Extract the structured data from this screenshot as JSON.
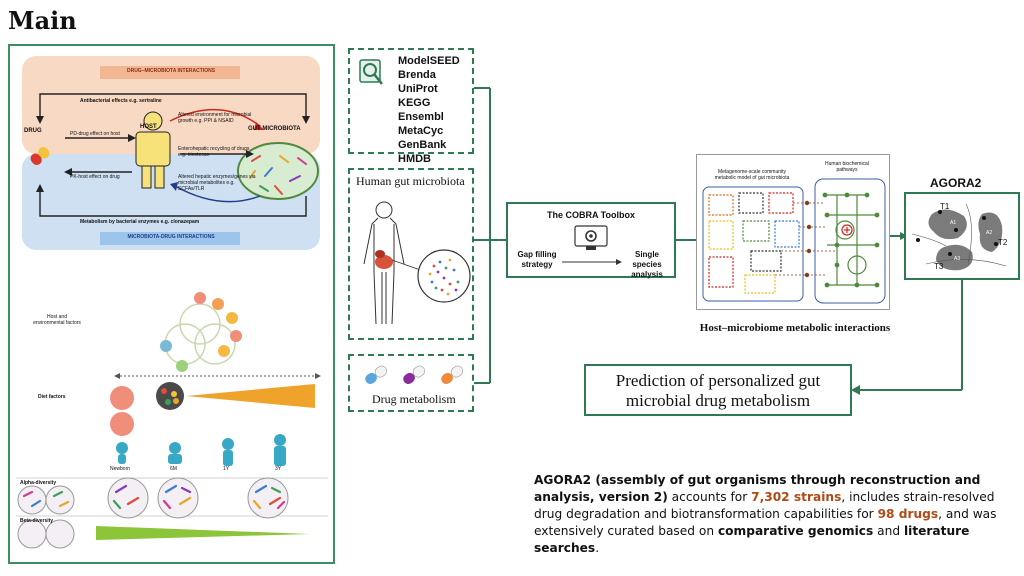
{
  "header": {
    "title": "Main"
  },
  "left_panel": {
    "drug_microbiota_header": "DRUG–MICROBIOTA INTERACTIONS",
    "microbiota_drug_header": "MICROBIOTA-DRUG INTERACTIONS",
    "antibacterial": "Antibacterial effects e.g. sertraline",
    "drug": "DRUG",
    "host": "HOST",
    "gut_microbiota": "GUT MICROBIOTA",
    "pd_effect": "PD-drug effect on host",
    "pk_effect": "PK-host effect on drug",
    "altered_env": "Altered environment for microbial growth e.g. PPI & NSAID",
    "enterohepatic": "Enterohepatic recycling of drugs e.g. irinotecan",
    "altered_hepatic": "Altered hepatic enzymes/genes via microbial metabolites e.g. SCFAs/TLR",
    "metabolism": "Metabolism by bacterial enzymes e.g. clonazepam",
    "host_env_factors": "Host and environmental factors",
    "diet_factors": "Diet factors",
    "ages": [
      "Newborn",
      "6M",
      "1Y",
      "3Y"
    ],
    "alpha": "Alpha-diversity",
    "beta": "Beta-diversity"
  },
  "databases": [
    "ModelSEED",
    "Brenda",
    "UniProt",
    "KEGG",
    "Ensembl",
    "MetaCyc",
    "GenBank",
    "HMDB"
  ],
  "human_gut": {
    "title": "Human gut microbiota"
  },
  "drug_metabolism": {
    "label": "Drug metabolism"
  },
  "cobra": {
    "title": "The COBRA Toolbox",
    "left": "Gap filling strategy",
    "right": "Single species analysis"
  },
  "network": {
    "left_label": "Metagenome-scale community metabolic model of gut microbiota",
    "right_label": "Human biochemical pathways",
    "caption": "Host–microbiome metabolic interactions"
  },
  "agora": {
    "title": "AGORA2",
    "labels": [
      "T1",
      "T2",
      "T3"
    ],
    "sublabels": [
      "A1",
      "A2",
      "A3"
    ]
  },
  "prediction": {
    "line1": "Prediction of personalized gut",
    "line2": "microbial drug metabolism"
  },
  "description": {
    "p1": "AGORA2 (assembly of gut organisms through reconstruction and analysis, version 2)",
    "p2": " accounts for ",
    "strains": "7,302 strains",
    "p3": ", includes strain-resolved drug degradation and biotransformation capabilities for ",
    "drugs": "98 drugs",
    "p4": ", and was extensively curated based on ",
    "cg": "comparative genomics",
    "p5": " and ",
    "ls": "literature searches",
    "p6": "."
  },
  "colors": {
    "green": "#2f7a52",
    "orange": "#b24a16",
    "peach": "#f8d9c4",
    "blue": "#cfe0f2"
  }
}
